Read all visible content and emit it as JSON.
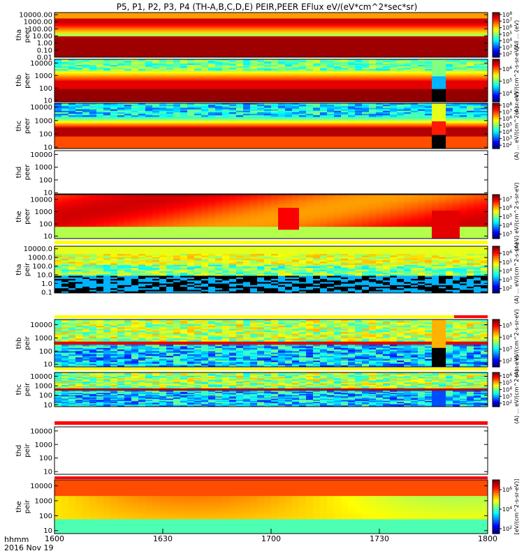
{
  "title": "P5, P1, P2, P3, P4 (TH-A,B,C,D,E) PEIR,PEER EFlux eV/(eV*cm^2*sec*sr)",
  "footer": {
    "label_line1": "hhmm",
    "label_line2": "2016 Nov 19"
  },
  "x_ticks": [
    "1600",
    "1630",
    "1700",
    "1730",
    "1800"
  ],
  "chart_data": {
    "type": "heatmap",
    "x_range": [
      "16:00",
      "18:00"
    ],
    "xlabel": "hhmm",
    "date": "2016 Nov 19",
    "panels": [
      {
        "id": "tha_peer",
        "ylabel": [
          "tha",
          "peer"
        ],
        "yticks": [
          "10000.00",
          "1000.00",
          "100.00",
          "10.00",
          "1.00",
          "0.10",
          "0.01"
        ],
        "log_range": [
          -2,
          4.3
        ],
        "cbar_label": "(All ... (eV)",
        "cbar_ticks": [
          "10^2",
          "10^3",
          "10^4",
          "10^5",
          "10^6",
          "10^7",
          "10^8"
        ],
        "cbar_log": [
          1.5,
          8.3
        ],
        "status_bar": "none",
        "style": "tha",
        "data_present": true
      },
      {
        "id": "thb_peer",
        "ylabel": [
          "thb",
          "peer"
        ],
        "yticks": [
          "10000",
          "1000",
          "100",
          "10"
        ],
        "log_range": [
          0.9,
          4.3
        ],
        "cbar_label": "(A) ... eV/(cm^2-s-sr-eV)",
        "cbar_ticks": [
          "10^4",
          "10^5",
          "10^6"
        ],
        "cbar_log": [
          3.3,
          6.8
        ],
        "status_bar": "none",
        "style": "thb",
        "data_present": true
      },
      {
        "id": "thc_peer",
        "ylabel": [
          "thc",
          "peer"
        ],
        "yticks": [
          "10000",
          "1000",
          "100",
          "10"
        ],
        "log_range": [
          0.9,
          4.3
        ],
        "cbar_label": "(A) ... eV/(cm^2-s-sr-eV)",
        "cbar_ticks": [
          "10^2",
          "10^3",
          "10^4",
          "10^5",
          "10^6",
          "10^7",
          "10^8"
        ],
        "cbar_log": [
          1.5,
          8.3
        ],
        "status_bar": "none",
        "style": "thc",
        "data_present": true
      },
      {
        "id": "thd_peer",
        "ylabel": [
          "thd",
          "peer"
        ],
        "yticks": [
          "10000",
          "1000",
          "100",
          "10"
        ],
        "log_range": [
          0.9,
          4.3
        ],
        "cbar_label": "",
        "cbar_ticks": [],
        "status_bar": "none",
        "style": "empty",
        "data_present": false
      },
      {
        "id": "the_peer",
        "ylabel": [
          "the",
          "peer"
        ],
        "yticks": [
          "10000",
          "1000",
          "100",
          "10"
        ],
        "log_range": [
          0.8,
          4.4
        ],
        "cbar_label": "(A) ... eV/(cm^2-s-sr-eV)",
        "cbar_ticks": [
          "10^3",
          "10^4",
          "10^5",
          "10^6",
          "10^7"
        ],
        "cbar_log": [
          2.5,
          7.5
        ],
        "status_bar": "none",
        "style": "the_e",
        "data_present": true
      },
      {
        "id": "tha_peir",
        "ylabel": [
          "tha",
          "peir"
        ],
        "yticks": [
          "10000.0",
          "1000.0",
          "100.0",
          "10.0",
          "1.0",
          "0.1"
        ],
        "log_range": [
          -1.1,
          4.3
        ],
        "cbar_label": "(A) ... eV/(cm^2-s-sr-eV)",
        "cbar_ticks": [
          "10^2",
          "10^3",
          "10^4",
          "10^5",
          "10^6"
        ],
        "cbar_log": [
          1.5,
          6.8
        ],
        "status_bar": "yellow",
        "style": "tha_i",
        "data_present": true
      },
      {
        "id": "thb_peir",
        "ylabel": [
          "thb",
          "peir"
        ],
        "yticks": [
          "10000",
          "1000",
          "100",
          "10"
        ],
        "log_range": [
          0.8,
          4.4
        ],
        "cbar_label": "(A) ... eV/(cm^2-s-sr-eV)",
        "cbar_ticks": [
          "10^2",
          "10^3",
          "10^4",
          "10^5"
        ],
        "cbar_log": [
          1.5,
          5.5
        ],
        "status_bar": "yellow_red",
        "style": "thb_i",
        "data_present": true
      },
      {
        "id": "thc_peir",
        "ylabel": [
          "thc",
          "peir"
        ],
        "yticks": [
          "10000",
          "1000",
          "100",
          "10"
        ],
        "log_range": [
          0.8,
          4.4
        ],
        "cbar_label": "(A) ... eV/(cm^2-s-sr-eV)",
        "cbar_ticks": [
          "10^2",
          "10^3",
          "10^4",
          "10^5",
          "10^6"
        ],
        "cbar_log": [
          1.5,
          6.5
        ],
        "status_bar": "yellow",
        "style": "thc_i",
        "data_present": true
      },
      {
        "id": "thd_peir",
        "ylabel": [
          "thd",
          "peir"
        ],
        "yticks": [
          "10000",
          "1000",
          "100",
          "10"
        ],
        "log_range": [
          0.8,
          4.3
        ],
        "cbar_label": "",
        "cbar_ticks": [],
        "status_bar": "red",
        "style": "empty",
        "data_present": false
      },
      {
        "id": "the_peir",
        "ylabel": [
          "the",
          "peir"
        ],
        "yticks": [
          "10000",
          "1000",
          "100",
          "10"
        ],
        "log_range": [
          0.8,
          4.4
        ],
        "cbar_label": "[eV/(cm^2-s-sr-eV)]",
        "cbar_ticks": [
          "10^2",
          "10^4",
          "10^6"
        ],
        "cbar_log": [
          1.5,
          7.0
        ],
        "status_bar": "none",
        "style": "the_i",
        "data_present": true
      }
    ]
  }
}
